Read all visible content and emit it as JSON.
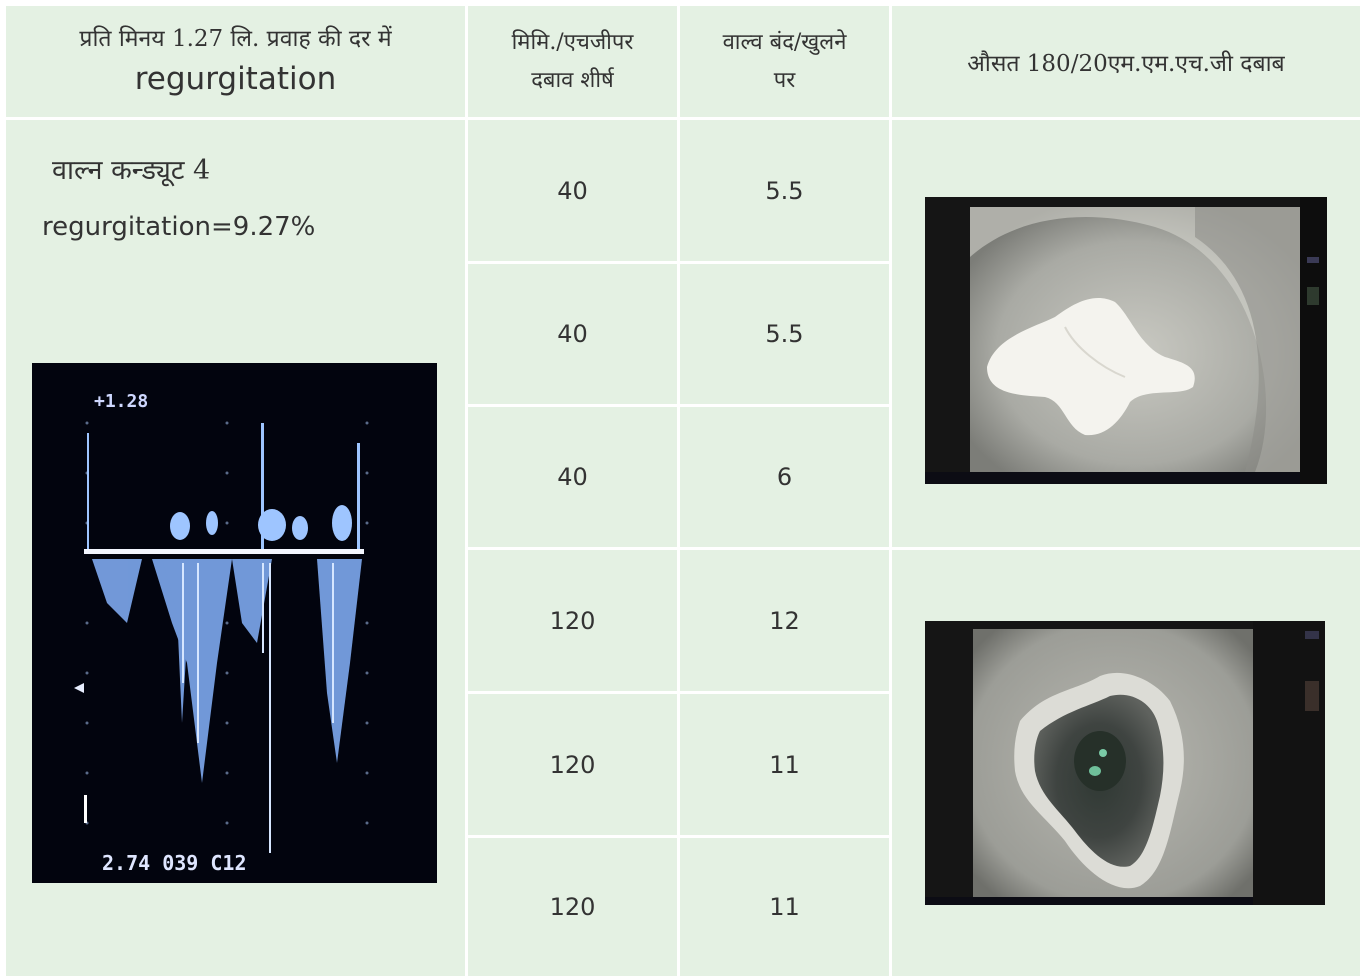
{
  "headers": {
    "col1_line1": "प्रति मिनय 1.27 लि. प्रवाह की दर में",
    "col1_line2": "regurgitation",
    "col2_line1": "मिमि./एचजीपर",
    "col2_line2": "दबाव शीर्ष",
    "col3_line1": "वाल्व बंद/खुलने",
    "col3_line2": "पर",
    "col4": "औसत 180/20एम.एम.एच.जी दबाब"
  },
  "left_panel": {
    "title": "वाल्न कन्ड्यूट 4",
    "regurgitation": "regurgitation=9.27%",
    "doppler_image": {
      "top_label": "+1.28",
      "bottom_label": "2.74 039 C12"
    }
  },
  "rows": [
    {
      "pressure": "40",
      "valve": "5.5"
    },
    {
      "pressure": "40",
      "valve": "5.5"
    },
    {
      "pressure": "40",
      "valve": "6"
    },
    {
      "pressure": "120",
      "valve": "12"
    },
    {
      "pressure": "120",
      "valve": "11"
    },
    {
      "pressure": "120",
      "valve": "11"
    }
  ],
  "images": {
    "valve_closed": "valve-closed-photo",
    "valve_open": "valve-open-photo"
  },
  "colors": {
    "cell_background": "#e4f1e3",
    "grid_lines": "#ffffff",
    "text": "#333333"
  }
}
